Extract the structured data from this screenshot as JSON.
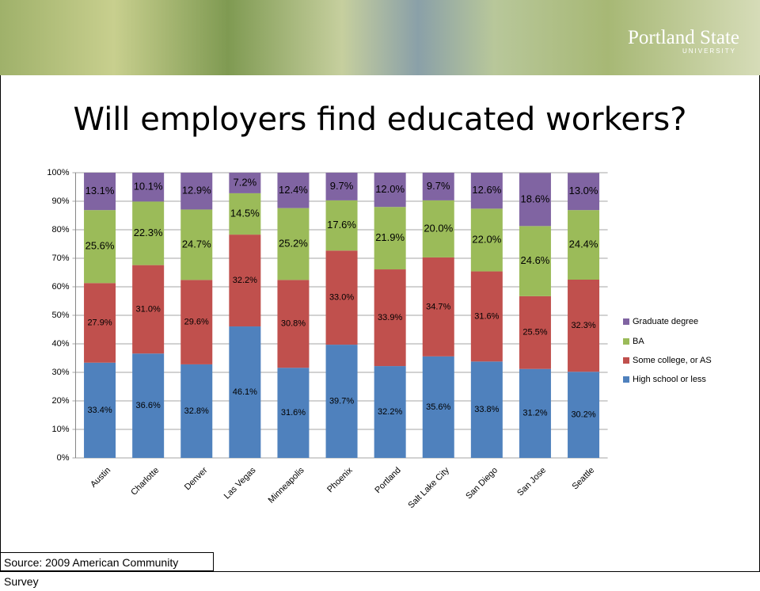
{
  "header": {
    "logo": "Portland State",
    "logo_sub": "UNIVERSITY"
  },
  "slide_title": "Will employers find educated workers?",
  "source": "Source: 2009 American Community Survey",
  "chart_data": {
    "type": "stacked_bar",
    "categories": [
      "Austin",
      "Charlotte",
      "Denver",
      "Las Vegas",
      "Minneapolis",
      "Phoenix",
      "Portland",
      "Salt Lake City",
      "San Diego",
      "San Jose",
      "Seattle"
    ],
    "series": [
      {
        "name": "High school or less",
        "color": "#4f81bd",
        "values": [
          33.4,
          36.6,
          32.8,
          46.1,
          31.6,
          39.7,
          32.2,
          35.6,
          33.8,
          31.2,
          30.2
        ],
        "value_labels": [
          "33.4%",
          "36.6%",
          "32.8%",
          "46.1%",
          "31.6%",
          "39.7%",
          "32.2%",
          "35.6%",
          "33.8%",
          "31.2%",
          "30.2%"
        ]
      },
      {
        "name": "Some college, or AS",
        "color": "#c0504d",
        "values": [
          27.9,
          31.0,
          29.6,
          32.2,
          30.8,
          33.0,
          33.9,
          34.7,
          31.6,
          25.5,
          32.3
        ],
        "value_labels": [
          "27.9%",
          "31.0%",
          "29.6%",
          "32.2%",
          "30.8%",
          "33.0%",
          "33.9%",
          "34.7%",
          "31.6%",
          "25.5%",
          "32.3%"
        ]
      },
      {
        "name": "BA",
        "color": "#9bbb59",
        "values": [
          25.6,
          22.3,
          24.7,
          14.5,
          25.2,
          17.6,
          21.9,
          20.0,
          22.0,
          24.6,
          24.4
        ],
        "value_labels": [
          "25.6%",
          "22.3%",
          "24.7%",
          "14.5%",
          "25.2%",
          "17.6%",
          "21.9%",
          "20.0%",
          "22.0%",
          "24.6%",
          "24.4%"
        ]
      },
      {
        "name": "Graduate degree",
        "color": "#8064a2",
        "values": [
          13.1,
          10.1,
          12.9,
          7.2,
          12.4,
          9.7,
          12.0,
          9.7,
          12.6,
          18.6,
          13.0
        ],
        "value_labels": [
          "13.1%",
          "10.1%",
          "12.9%",
          "7.2%",
          "12.4%",
          "9.7%",
          "12.0%",
          "9.7%",
          "12.6%",
          "18.6%",
          "13.0%"
        ]
      }
    ],
    "ylim": [
      0,
      100
    ],
    "yticks": [
      {
        "value": 0,
        "label": "0%"
      },
      {
        "value": 10,
        "label": "10%"
      },
      {
        "value": 20,
        "label": "20%"
      },
      {
        "value": 30,
        "label": "30%"
      },
      {
        "value": 40,
        "label": "40%"
      },
      {
        "value": 50,
        "label": "50%"
      },
      {
        "value": 60,
        "label": "60%"
      },
      {
        "value": 70,
        "label": "70%"
      },
      {
        "value": 80,
        "label": "80%"
      },
      {
        "value": 90,
        "label": "90%"
      },
      {
        "value": 100,
        "label": "100%"
      }
    ],
    "grid": true,
    "legend": "right"
  }
}
